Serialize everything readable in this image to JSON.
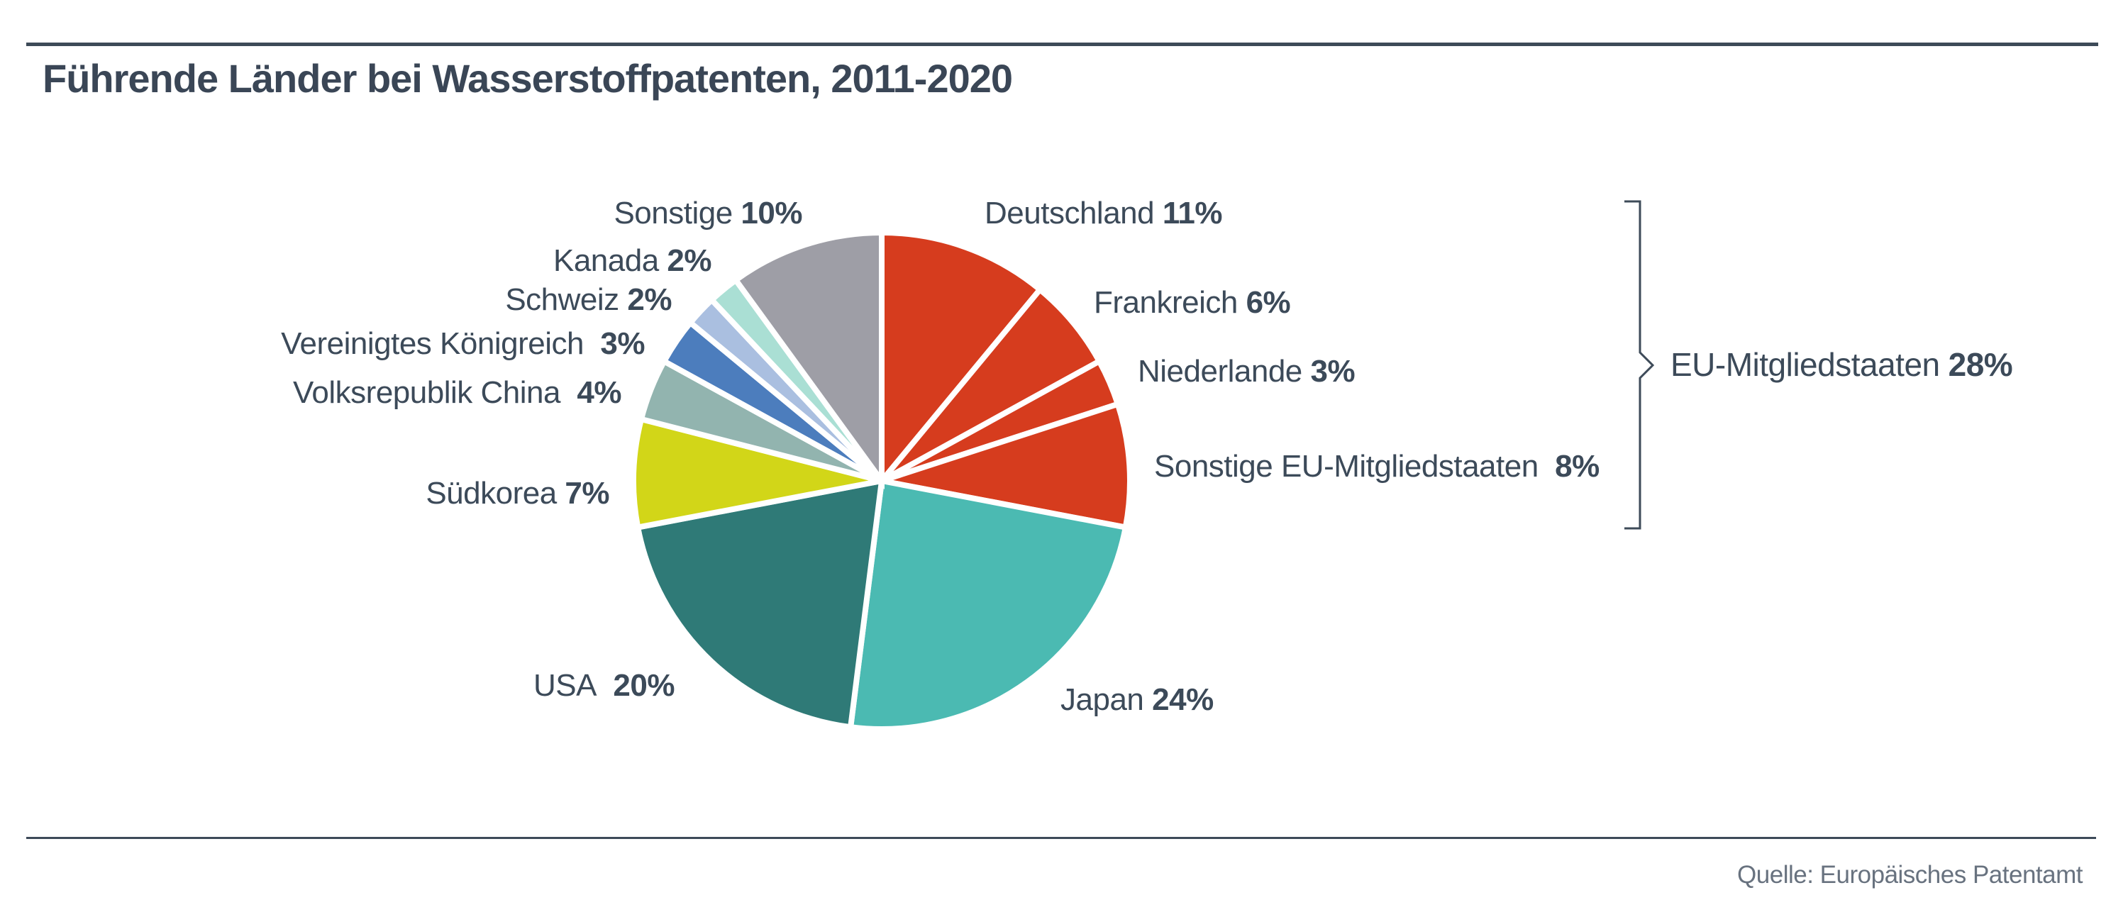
{
  "chart_data": {
    "type": "pie",
    "title": "Führende Länder bei Wasserstoffpatenten, 2011-2020",
    "source": "Quelle: Europäisches Patentamt",
    "start_angle_deg": -90,
    "direction": "clockwise",
    "unit": "%",
    "slices": [
      {
        "id": "deutschland",
        "name": "Deutschland",
        "value": 11,
        "pct": "11%",
        "color": "#d63c1e"
      },
      {
        "id": "frankreich",
        "name": "Frankreich",
        "value": 6,
        "pct": "6%",
        "color": "#d63c1e"
      },
      {
        "id": "niederlande",
        "name": "Niederlande",
        "value": 3,
        "pct": "3%",
        "color": "#d63c1e"
      },
      {
        "id": "sonstige_eu",
        "name": "Sonstige EU-Mitgliedstaaten",
        "value": 8,
        "pct": "8%",
        "color": "#d63c1e"
      },
      {
        "id": "japan",
        "name": "Japan",
        "value": 24,
        "pct": "24%",
        "color": "#4bbab2"
      },
      {
        "id": "usa",
        "name": "USA",
        "value": 20,
        "pct": "20%",
        "color": "#2f7a77"
      },
      {
        "id": "suedkorea",
        "name": "Südkorea",
        "value": 7,
        "pct": "7%",
        "color": "#d2d618"
      },
      {
        "id": "china",
        "name": "Volksrepublik China",
        "value": 4,
        "pct": "4%",
        "color": "#92b4af"
      },
      {
        "id": "uk",
        "name": "Vereinigtes Königreich",
        "value": 3,
        "pct": "3%",
        "color": "#4c7dbd"
      },
      {
        "id": "schweiz",
        "name": "Schweiz",
        "value": 2,
        "pct": "2%",
        "color": "#aabfe0"
      },
      {
        "id": "kanada",
        "name": "Kanada",
        "value": 2,
        "pct": "2%",
        "color": "#aadfd4"
      },
      {
        "id": "sonstige",
        "name": "Sonstige",
        "value": 10,
        "pct": "10%",
        "color": "#9e9ea6"
      }
    ],
    "group_annotation": {
      "label": "EU-Mitgliedstaaten",
      "pct": "28%",
      "value": 28,
      "members": [
        "Deutschland",
        "Frankreich",
        "Niederlande",
        "Sonstige EU-Mitgliedstaaten"
      ]
    },
    "legend_position": "around-pie",
    "grid": false
  },
  "colors": {
    "background": "#ffffff",
    "text": "#3c4a59",
    "title_text": "#3a4656",
    "rule": "#3d4a58",
    "bracket": "#3e4b59",
    "source_text": "#68727f",
    "slice_gap": "#ffffff"
  }
}
